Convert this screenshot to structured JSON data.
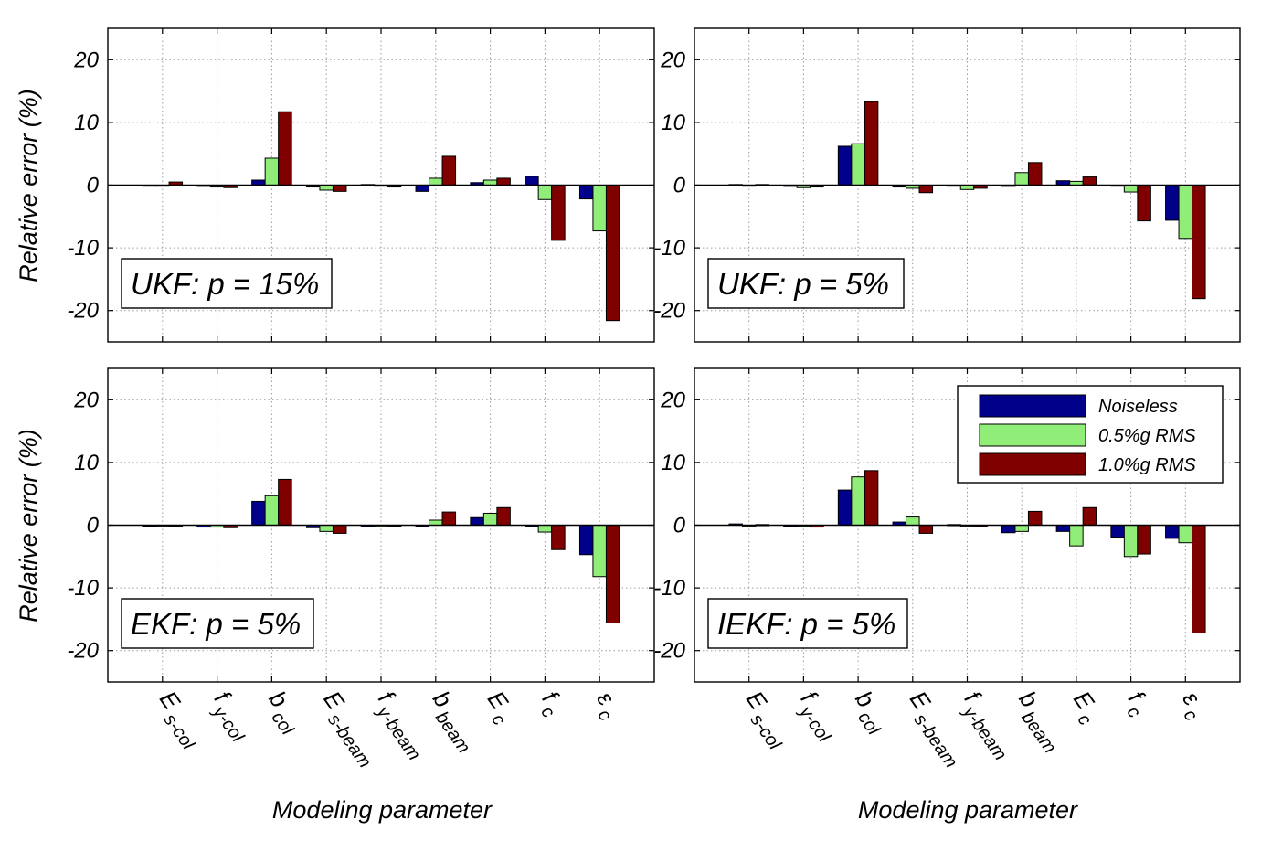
{
  "figure": {
    "ylabel": "Relative error (%)",
    "xlabel": "Modeling parameter"
  },
  "chart_data": {
    "type": "bar",
    "ylim": [
      -25,
      25
    ],
    "yticks": [
      -20,
      -10,
      0,
      10,
      20
    ],
    "grid": true,
    "legend_position": "top-right",
    "series": [
      {
        "name": "Noiseless",
        "color": "#00008b"
      },
      {
        "name": "0.5%g RMS",
        "color": "#90ee78"
      },
      {
        "name": "1.0%g RMS",
        "color": "#800000"
      }
    ],
    "categories": [
      {
        "main": "E",
        "sub": "s-col"
      },
      {
        "main": "f",
        "sub": "y-col"
      },
      {
        "main": "b",
        "sub": "col"
      },
      {
        "main": "E",
        "sub": "s-beam"
      },
      {
        "main": "f",
        "sub": "y-beam"
      },
      {
        "main": "b",
        "sub": "beam"
      },
      {
        "main": "E",
        "sub": "c"
      },
      {
        "main": "f",
        "sub": "c"
      },
      {
        "main": "ε",
        "sub": "c"
      }
    ],
    "panels": [
      {
        "label": "UKF: p = 15%",
        "values": [
          [
            -0.1,
            0.0,
            0.5
          ],
          [
            -0.2,
            -0.3,
            -0.4
          ],
          [
            0.8,
            4.3,
            11.7
          ],
          [
            -0.3,
            -0.8,
            -1.0
          ],
          [
            0.1,
            0.0,
            -0.3
          ],
          [
            -1.0,
            1.1,
            4.6
          ],
          [
            0.4,
            0.8,
            1.1
          ],
          [
            1.4,
            -2.3,
            -8.8
          ],
          [
            -2.2,
            -7.3,
            -21.6
          ]
        ]
      },
      {
        "label": "UKF: p = 5%",
        "values": [
          [
            0.1,
            0.0,
            0.1
          ],
          [
            -0.2,
            -0.4,
            -0.3
          ],
          [
            6.2,
            6.6,
            13.3
          ],
          [
            -0.3,
            -0.5,
            -1.2
          ],
          [
            0.0,
            -0.7,
            -0.5
          ],
          [
            -0.2,
            2.0,
            3.6
          ],
          [
            0.7,
            0.6,
            1.3
          ],
          [
            -0.1,
            -1.1,
            -5.7
          ],
          [
            -5.6,
            -8.5,
            -18.1
          ]
        ]
      },
      {
        "label": "EKF: p = 5%",
        "values": [
          [
            0.0,
            0.0,
            0.0
          ],
          [
            -0.3,
            -0.3,
            -0.4
          ],
          [
            3.8,
            4.7,
            7.3
          ],
          [
            -0.4,
            -1.0,
            -1.3
          ],
          [
            -0.2,
            -0.2,
            -0.1
          ],
          [
            -0.2,
            0.8,
            2.1
          ],
          [
            1.2,
            1.9,
            2.8
          ],
          [
            -0.2,
            -1.1,
            -3.9
          ],
          [
            -4.7,
            -8.2,
            -15.6
          ]
        ]
      },
      {
        "label": "IEKF: p = 5%",
        "values": [
          [
            0.2,
            0.0,
            0.1
          ],
          [
            -0.1,
            -0.1,
            -0.3
          ],
          [
            5.6,
            7.7,
            8.7
          ],
          [
            0.5,
            1.3,
            -1.3
          ],
          [
            0.1,
            -0.1,
            -0.2
          ],
          [
            -1.2,
            -1.0,
            2.2
          ],
          [
            -1.0,
            -3.3,
            2.8
          ],
          [
            -1.9,
            -5.0,
            -4.6
          ],
          [
            -2.1,
            -2.8,
            -17.2
          ]
        ]
      }
    ]
  }
}
